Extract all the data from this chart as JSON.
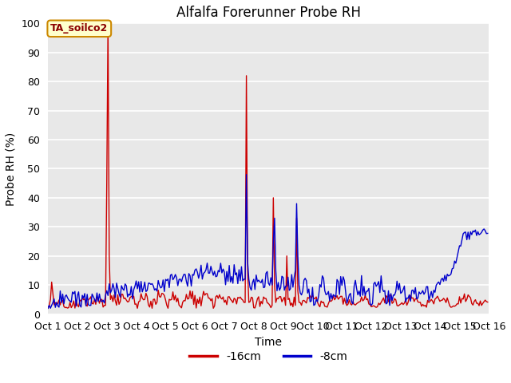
{
  "title": "Alfalfa Forerunner Probe RH",
  "xlabel": "Time",
  "ylabel": "Probe RH (%)",
  "annotation": "TA_soilco2",
  "ylim": [
    0,
    100
  ],
  "xlim": [
    0,
    360
  ],
  "xtick_labels": [
    "Oct 1",
    "Oct 2",
    "Oct 3",
    "Oct 4",
    "Oct 5",
    "Oct 6",
    "Oct 7",
    "Oct 8",
    "Oct 9",
    "Oct 10",
    "Oct 11",
    "Oct 12",
    "Oct 13",
    "Oct 14",
    "Oct 15",
    "Oct 16"
  ],
  "xtick_positions": [
    0,
    24,
    48,
    72,
    96,
    120,
    144,
    168,
    192,
    216,
    240,
    264,
    288,
    312,
    336,
    360
  ],
  "legend_labels": [
    "-16cm",
    "-8cm"
  ],
  "red_color": "#cc0000",
  "blue_color": "#0000cc",
  "bg_color": "#ffffff",
  "plot_bg_color": "#e8e8e8",
  "grid_color": "#ffffff",
  "line_width": 1.0,
  "figsize": [
    6.4,
    4.8
  ],
  "dpi": 100
}
